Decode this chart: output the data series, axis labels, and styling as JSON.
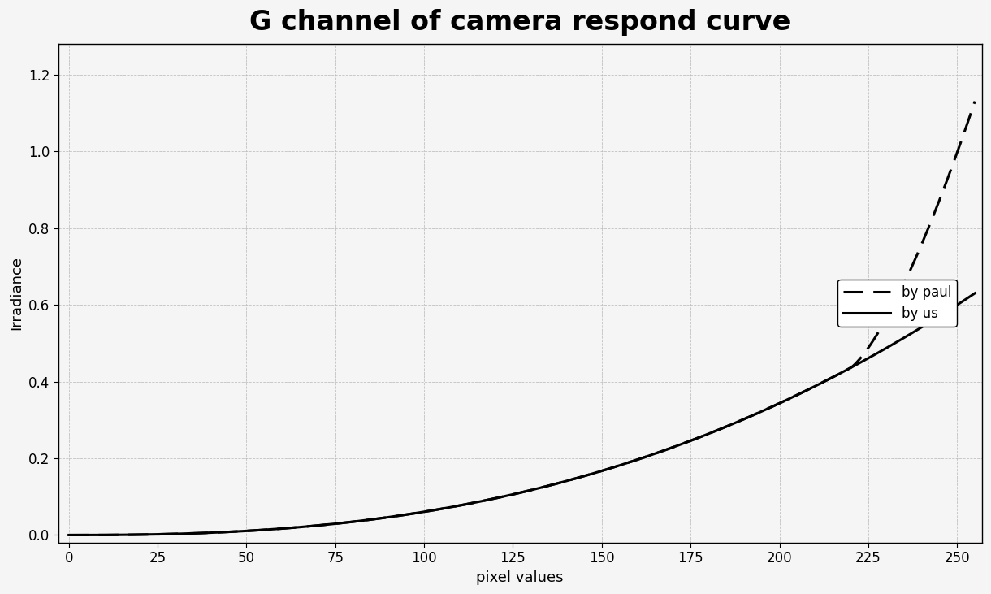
{
  "title": "G channel of camera respond curve",
  "xlabel": "pixel values",
  "ylabel": "Irradiance",
  "xlim": [
    -3,
    257
  ],
  "ylim": [
    -0.02,
    1.28
  ],
  "xticks": [
    0,
    25,
    50,
    75,
    100,
    125,
    150,
    175,
    200,
    225,
    250
  ],
  "yticks": [
    0,
    0.2,
    0.4,
    0.6,
    0.8,
    1.0,
    1.2
  ],
  "grid_color": "#bbbbbb",
  "background_color": "#f5f5f5",
  "line_color": "#000000",
  "legend_by_paul": "by paul",
  "legend_by_us": "by us",
  "title_fontsize": 24,
  "axis_label_fontsize": 13,
  "tick_fontsize": 12,
  "legend_fontsize": 12,
  "paul_gamma": 2.2,
  "paul_scale": 1.13,
  "us_gamma": 2.2,
  "us_scale": 0.63,
  "paul_knee": 220,
  "us_knee": 230
}
